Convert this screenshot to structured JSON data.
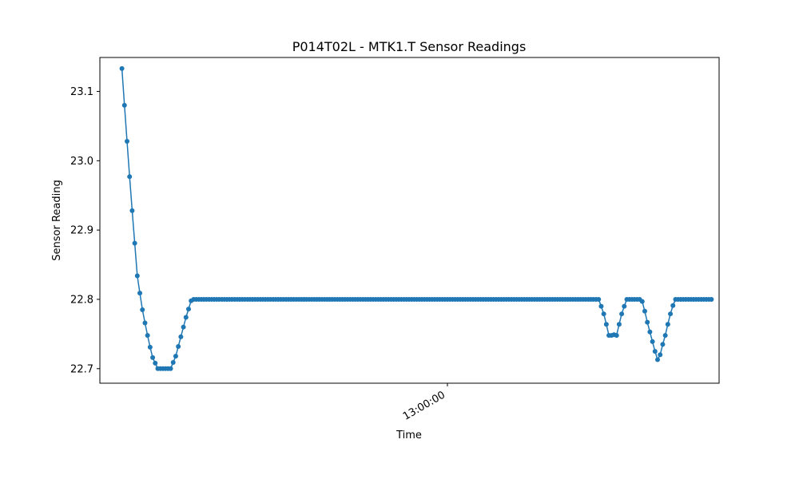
{
  "chart_data": {
    "type": "line",
    "title": "P014T02L - MTK1.T Sensor Readings",
    "xlabel": "Time",
    "ylabel": "Sensor Reading",
    "x_tick_labels": [
      {
        "value": "13:00:00",
        "index": 127
      }
    ],
    "y_ticks": [
      22.7,
      22.8,
      22.9,
      23.0,
      23.1
    ],
    "ylim": [
      22.679,
      23.149
    ],
    "xlim": [
      -8.6,
      233
    ],
    "grid": false,
    "legend": "none",
    "marker": "circle",
    "line_color": "#1f77b4",
    "series": [
      {
        "values": [
          23.133,
          23.08,
          23.028,
          22.977,
          22.928,
          22.881,
          22.834,
          22.809,
          22.785,
          22.766,
          22.748,
          22.731,
          22.716,
          22.708,
          22.7,
          22.7,
          22.7,
          22.7,
          22.7,
          22.7,
          22.709,
          22.718,
          22.732,
          22.746,
          22.76,
          22.774,
          22.786,
          22.798,
          22.8,
          22.8,
          22.8,
          22.8,
          22.8,
          22.8,
          22.8,
          22.8,
          22.8,
          22.8,
          22.8,
          22.8,
          22.8,
          22.8,
          22.8,
          22.8,
          22.8,
          22.8,
          22.8,
          22.8,
          22.8,
          22.8,
          22.8,
          22.8,
          22.8,
          22.8,
          22.8,
          22.8,
          22.8,
          22.8,
          22.8,
          22.8,
          22.8,
          22.8,
          22.8,
          22.8,
          22.8,
          22.8,
          22.8,
          22.8,
          22.8,
          22.8,
          22.8,
          22.8,
          22.8,
          22.8,
          22.8,
          22.8,
          22.8,
          22.8,
          22.8,
          22.8,
          22.8,
          22.8,
          22.8,
          22.8,
          22.8,
          22.8,
          22.8,
          22.8,
          22.8,
          22.8,
          22.8,
          22.8,
          22.8,
          22.8,
          22.8,
          22.8,
          22.8,
          22.8,
          22.8,
          22.8,
          22.8,
          22.8,
          22.8,
          22.8,
          22.8,
          22.8,
          22.8,
          22.8,
          22.8,
          22.8,
          22.8,
          22.8,
          22.8,
          22.8,
          22.8,
          22.8,
          22.8,
          22.8,
          22.8,
          22.8,
          22.8,
          22.8,
          22.8,
          22.8,
          22.8,
          22.8,
          22.8,
          22.8,
          22.8,
          22.8,
          22.8,
          22.8,
          22.8,
          22.8,
          22.8,
          22.8,
          22.8,
          22.8,
          22.8,
          22.8,
          22.8,
          22.8,
          22.8,
          22.8,
          22.8,
          22.8,
          22.8,
          22.8,
          22.8,
          22.8,
          22.8,
          22.8,
          22.8,
          22.8,
          22.8,
          22.8,
          22.8,
          22.8,
          22.8,
          22.8,
          22.8,
          22.8,
          22.8,
          22.8,
          22.8,
          22.8,
          22.8,
          22.8,
          22.8,
          22.8,
          22.8,
          22.8,
          22.8,
          22.8,
          22.8,
          22.8,
          22.8,
          22.8,
          22.8,
          22.8,
          22.8,
          22.8,
          22.8,
          22.8,
          22.8,
          22.8,
          22.8,
          22.79,
          22.779,
          22.764,
          22.748,
          22.748,
          22.749,
          22.748,
          22.764,
          22.779,
          22.79,
          22.8,
          22.8,
          22.8,
          22.8,
          22.8,
          22.8,
          22.797,
          22.783,
          22.767,
          22.753,
          22.739,
          22.725,
          22.713,
          22.72,
          22.735,
          22.748,
          22.764,
          22.779,
          22.791,
          22.8,
          22.8,
          22.8,
          22.8,
          22.8,
          22.8,
          22.8,
          22.8,
          22.8,
          22.8,
          22.8,
          22.8,
          22.8,
          22.8,
          22.8
        ]
      }
    ]
  }
}
